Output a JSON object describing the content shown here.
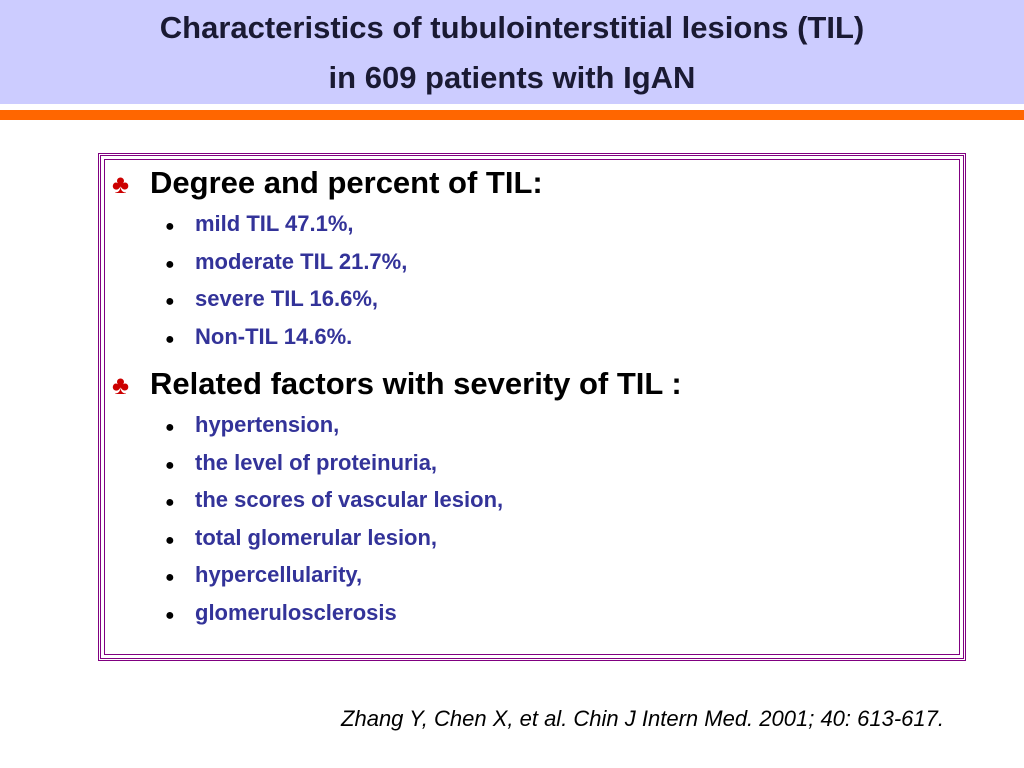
{
  "header": {
    "title_lines": [
      "Characteristics of tubulointerstitial lesions (TIL)",
      "in 609 patients with IgAN"
    ]
  },
  "sections": [
    {
      "heading": "Degree and percent of TIL:",
      "items": [
        "mild TIL 47.1%,",
        "moderate TIL 21.7%,",
        "severe TIL 16.6%,",
        "Non-TIL 14.6%."
      ]
    },
    {
      "heading": "Related factors with severity of TIL :",
      "items": [
        "hypertension,",
        "the level of proteinuria,",
        "the scores of vascular lesion,",
        "total glomerular lesion,",
        "hypercellularity,",
        "glomerulosclerosis"
      ]
    }
  ],
  "citation": "Zhang Y, Chen X, et al. Chin J Intern Med. 2001; 40: 613-617."
}
